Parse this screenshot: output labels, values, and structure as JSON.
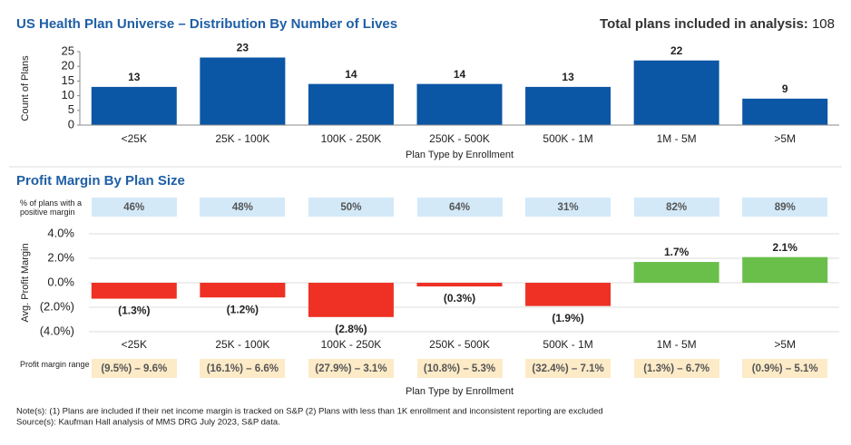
{
  "chart_data": [
    {
      "type": "bar",
      "title": "US Health Plan Universe – Distribution By Number of Lives",
      "summary_label": "Total plans included in analysis:",
      "summary_value": 108,
      "categories": [
        "<25K",
        "25K - 100K",
        "100K - 250K",
        "250K - 500K",
        "500K - 1M",
        "1M - 5M",
        ">5M"
      ],
      "values": [
        13,
        23,
        14,
        14,
        13,
        22,
        9
      ],
      "color": "#0b56a5",
      "ylim": [
        0,
        25
      ],
      "yticks": [
        0,
        5,
        10,
        15,
        20,
        25
      ],
      "ylabel": "Count of Plans",
      "xlabel": "Plan Type by Enrollment",
      "grid": false
    },
    {
      "type": "bar",
      "title": "Profit Margin By Plan Size",
      "categories": [
        "<25K",
        "25K - 100K",
        "100K - 250K",
        "250K - 500K",
        "500K - 1M",
        "1M - 5M",
        ">5M"
      ],
      "values": [
        -1.3,
        -1.2,
        -2.8,
        -0.3,
        -1.9,
        1.7,
        2.1
      ],
      "value_labels": [
        "(1.3%)",
        "(1.2%)",
        "(2.8%)",
        "(0.3%)",
        "(1.9%)",
        "1.7%",
        "2.1%"
      ],
      "positive_color": "#6abf4b",
      "negative_color": "#ee3124",
      "ylim": [
        -4,
        4
      ],
      "yticks": [
        {
          "value": -4,
          "label": "(4.0%)"
        },
        {
          "value": -2,
          "label": "(2.0%)"
        },
        {
          "value": 0,
          "label": "0.0%"
        },
        {
          "value": 2,
          "label": "2.0%"
        },
        {
          "value": 4,
          "label": "4.0%"
        }
      ],
      "ylabel": "Avg. Profit Margin",
      "xlabel": "Plan Type by Enrollment",
      "grid": true,
      "positive_share": {
        "label": "% of plans with a positive margin",
        "cells": [
          "46%",
          "48%",
          "50%",
          "64%",
          "31%",
          "82%",
          "89%"
        ],
        "color": "#d3e9f8"
      },
      "margin_range": {
        "label": "Profit margin range",
        "cells": [
          "(9.5%) – 9.6%",
          "(16.1%) – 6.6%",
          "(27.9%) – 3.1%",
          "(10.8%) – 5.3%",
          "(32.4%) – 7.1%",
          "(1.3%) – 6.7%",
          "(0.9%) – 5.1%"
        ],
        "color": "#fdebc8"
      }
    }
  ],
  "notes": [
    "Note(s): (1) Plans are included if their net income margin is tracked on S&P (2) Plans with less than 1K enrollment and inconsistent reporting are excluded",
    "Source(s): Kaufman Hall analysis of MMS DRG July 2023, S&P data."
  ]
}
